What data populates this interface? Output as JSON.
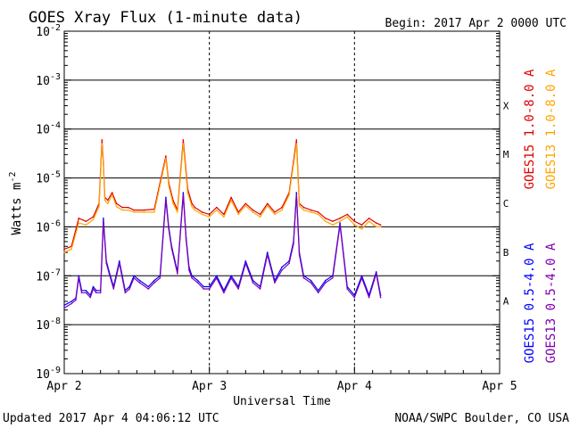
{
  "chart_data": {
    "type": "line",
    "title": "GOES Xray Flux (1-minute data)",
    "begin_label": "Begin:  2017 Apr 2 0000 UTC",
    "ylabel": "Watts m",
    "ylabel_sup": "-2",
    "xlabel": "Universal Time",
    "y_scale": "log",
    "ylim": [
      1e-09,
      0.01
    ],
    "xlim": [
      0,
      3
    ],
    "x_tick_labels": [
      "Apr 2",
      "Apr 3",
      "Apr 4",
      "Apr 5"
    ],
    "y_tick_exponents": [
      -2,
      -3,
      -4,
      -5,
      -6,
      -7,
      -8,
      -9
    ],
    "flare_classes": [
      {
        "label": "X",
        "value": 0.0001
      },
      {
        "label": "M",
        "value": 1e-05
      },
      {
        "label": "C",
        "value": 1e-06
      },
      {
        "label": "B",
        "value": 1e-07
      },
      {
        "label": "A",
        "value": 1e-08
      }
    ],
    "grid": "horizontal decade lines",
    "series": [
      {
        "name": "GOES15 1.0-8.0 A",
        "color": "#e00000",
        "x": [
          0.0,
          0.05,
          0.1,
          0.15,
          0.2,
          0.24,
          0.26,
          0.27,
          0.28,
          0.3,
          0.33,
          0.36,
          0.4,
          0.44,
          0.48,
          0.55,
          0.62,
          0.7,
          0.72,
          0.75,
          0.78,
          0.82,
          0.85,
          0.88,
          0.9,
          0.95,
          1.0,
          1.05,
          1.1,
          1.15,
          1.2,
          1.25,
          1.3,
          1.35,
          1.4,
          1.45,
          1.5,
          1.55,
          1.6,
          1.62,
          1.65,
          1.7,
          1.75,
          1.8,
          1.85,
          1.9,
          1.95,
          2.0,
          2.05,
          2.1,
          2.15,
          2.18
        ],
        "y": [
          3.5e-07,
          4e-07,
          1.5e-06,
          1.3e-06,
          1.6e-06,
          3e-06,
          6e-05,
          2e-05,
          4e-06,
          3.5e-06,
          5e-06,
          3e-06,
          2.5e-06,
          2.5e-06,
          2.2e-06,
          2.2e-06,
          2.3e-06,
          2.8e-05,
          8e-06,
          3.5e-06,
          2.2e-06,
          6e-05,
          6e-06,
          3e-06,
          2.5e-06,
          2e-06,
          1.8e-06,
          2.5e-06,
          1.8e-06,
          4e-06,
          2e-06,
          3e-06,
          2.2e-06,
          1.8e-06,
          3e-06,
          2e-06,
          2.5e-06,
          5e-06,
          6e-05,
          3e-06,
          2.5e-06,
          2.2e-06,
          2e-06,
          1.5e-06,
          1.3e-06,
          1.5e-06,
          1.8e-06,
          1.3e-06,
          1.1e-06,
          1.5e-06,
          1.2e-06,
          1.1e-06
        ]
      },
      {
        "name": "GOES13 1.0-8.0 A",
        "color": "#ffa500",
        "x": [
          0.0,
          0.05,
          0.1,
          0.15,
          0.2,
          0.24,
          0.26,
          0.27,
          0.28,
          0.3,
          0.33,
          0.36,
          0.4,
          0.44,
          0.48,
          0.55,
          0.62,
          0.7,
          0.72,
          0.75,
          0.78,
          0.82,
          0.85,
          0.88,
          0.9,
          0.95,
          1.0,
          1.05,
          1.1,
          1.15,
          1.2,
          1.25,
          1.3,
          1.35,
          1.4,
          1.45,
          1.5,
          1.55,
          1.6,
          1.62,
          1.65,
          1.7,
          1.75,
          1.8,
          1.85,
          1.9,
          1.95,
          2.0,
          2.05,
          2.1,
          2.15,
          2.18
        ],
        "y": [
          3e-07,
          3.5e-07,
          1.2e-06,
          1.1e-06,
          1.4e-06,
          2.6e-06,
          5e-05,
          1.8e-05,
          3.5e-06,
          3e-06,
          4.5e-06,
          2.6e-06,
          2.2e-06,
          2.2e-06,
          2e-06,
          2e-06,
          2e-06,
          2.5e-05,
          7e-06,
          3e-06,
          2e-06,
          5e-05,
          5e-06,
          2.6e-06,
          2.2e-06,
          1.8e-06,
          1.6e-06,
          2.2e-06,
          1.6e-06,
          3.5e-06,
          1.8e-06,
          2.7e-06,
          2e-06,
          1.6e-06,
          2.7e-06,
          1.8e-06,
          2.2e-06,
          4.5e-06,
          5e-05,
          2.7e-06,
          2.2e-06,
          2e-06,
          1.8e-06,
          1.3e-06,
          1.1e-06,
          1.3e-06,
          1.6e-06,
          1.1e-06,
          9e-07,
          1.3e-06,
          1e-06,
          1e-06
        ]
      },
      {
        "name": "GOES15 0.5-4.0 A",
        "color": "#0000ff",
        "x": [
          0.0,
          0.05,
          0.08,
          0.1,
          0.12,
          0.15,
          0.18,
          0.2,
          0.22,
          0.25,
          0.27,
          0.29,
          0.31,
          0.34,
          0.38,
          0.42,
          0.45,
          0.48,
          0.52,
          0.58,
          0.62,
          0.66,
          0.7,
          0.72,
          0.74,
          0.78,
          0.82,
          0.84,
          0.86,
          0.88,
          0.92,
          0.96,
          1.0,
          1.05,
          1.1,
          1.15,
          1.2,
          1.25,
          1.3,
          1.35,
          1.4,
          1.45,
          1.5,
          1.55,
          1.58,
          1.6,
          1.62,
          1.65,
          1.7,
          1.75,
          1.8,
          1.85,
          1.9,
          1.95,
          2.0,
          2.05,
          2.1,
          2.15,
          2.18
        ],
        "y": [
          2.5e-08,
          3e-08,
          3.5e-08,
          1e-07,
          5e-08,
          5e-08,
          4e-08,
          6e-08,
          5e-08,
          5e-08,
          1.5e-06,
          2e-07,
          1.2e-07,
          6e-08,
          2e-07,
          5e-08,
          6e-08,
          1e-07,
          8e-08,
          6e-08,
          8e-08,
          1e-07,
          4e-06,
          1e-06,
          4e-07,
          1.2e-07,
          5e-06,
          6e-07,
          1.5e-07,
          1e-07,
          8e-08,
          6e-08,
          6e-08,
          1e-07,
          5e-08,
          1e-07,
          6e-08,
          2e-07,
          8e-08,
          6e-08,
          3e-07,
          8e-08,
          1.5e-07,
          2e-07,
          5e-07,
          5e-06,
          3e-07,
          1e-07,
          8e-08,
          5e-08,
          8e-08,
          1e-07,
          1.2e-06,
          6e-08,
          4e-08,
          1e-07,
          4e-08,
          1.2e-07,
          4e-08
        ]
      },
      {
        "name": "GOES13 0.5-4.0 A",
        "color": "#7f00b2",
        "x": [
          0.0,
          0.05,
          0.08,
          0.1,
          0.12,
          0.15,
          0.18,
          0.2,
          0.22,
          0.25,
          0.27,
          0.29,
          0.31,
          0.34,
          0.38,
          0.42,
          0.45,
          0.48,
          0.52,
          0.58,
          0.62,
          0.66,
          0.7,
          0.72,
          0.74,
          0.78,
          0.82,
          0.84,
          0.86,
          0.88,
          0.92,
          0.96,
          1.0,
          1.05,
          1.1,
          1.15,
          1.2,
          1.25,
          1.3,
          1.35,
          1.4,
          1.45,
          1.5,
          1.55,
          1.58,
          1.6,
          1.62,
          1.65,
          1.7,
          1.75,
          1.8,
          1.85,
          1.9,
          1.95,
          2.0,
          2.05,
          2.1,
          2.15,
          2.18
        ],
        "y": [
          2.2e-08,
          2.7e-08,
          3.2e-08,
          9e-08,
          4.5e-08,
          4.5e-08,
          3.6e-08,
          5.4e-08,
          4.5e-08,
          4.5e-08,
          1.3e-06,
          1.8e-07,
          1.1e-07,
          5.4e-08,
          1.8e-07,
          4.5e-08,
          5.4e-08,
          9e-08,
          7.2e-08,
          5.4e-08,
          7.2e-08,
          9e-08,
          3.6e-06,
          9e-07,
          3.6e-07,
          1.1e-07,
          4.5e-06,
          5.4e-07,
          1.3e-07,
          9e-08,
          7.2e-08,
          5.4e-08,
          5.4e-08,
          9e-08,
          4.5e-08,
          9e-08,
          5.4e-08,
          1.8e-07,
          7.2e-08,
          5.4e-08,
          2.7e-07,
          7.2e-08,
          1.3e-07,
          1.8e-07,
          4.5e-07,
          4.5e-06,
          2.7e-07,
          9e-08,
          7.2e-08,
          4.5e-08,
          7.2e-08,
          9e-08,
          1.1e-06,
          5.4e-08,
          3.6e-08,
          9e-08,
          3.6e-08,
          1.1e-07,
          3.6e-08
        ]
      }
    ],
    "legend_placement": "right, vertical"
  },
  "footer": {
    "updated": "Updated 2017 Apr  4 04:06:12 UTC",
    "source": "NOAA/SWPC Boulder, CO USA"
  }
}
